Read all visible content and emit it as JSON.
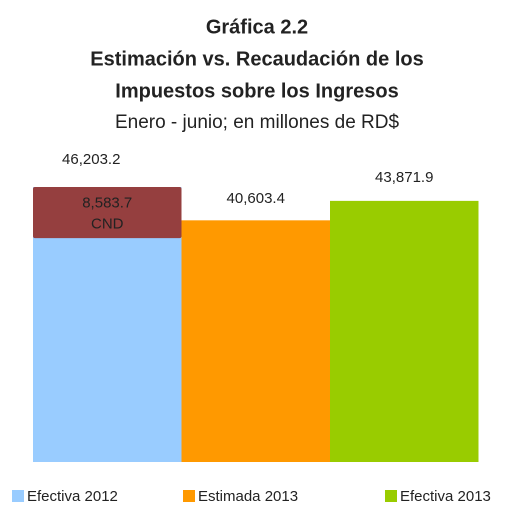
{
  "chart_data": {
    "type": "bar",
    "title": [
      "Gráfica 2.2",
      "Estimación vs. Recaudación de los",
      "Impuestos sobre los Ingresos"
    ],
    "subtitle": "Enero - junio; en millones de RD$",
    "categories": [
      "Efectiva 2012",
      "Estimada 2013",
      "Efectiva 2013"
    ],
    "values": [
      46203.2,
      40603.4,
      43871.9
    ],
    "value_labels": [
      "46,203.2",
      "40,603.4",
      "43,871.9"
    ],
    "colors": [
      "#99ccff",
      "#ff9900",
      "#99cc00"
    ],
    "segments": [
      {
        "value": 8583.7,
        "value_label": "8,583.7",
        "label": "CND",
        "color": "#953735"
      }
    ]
  }
}
